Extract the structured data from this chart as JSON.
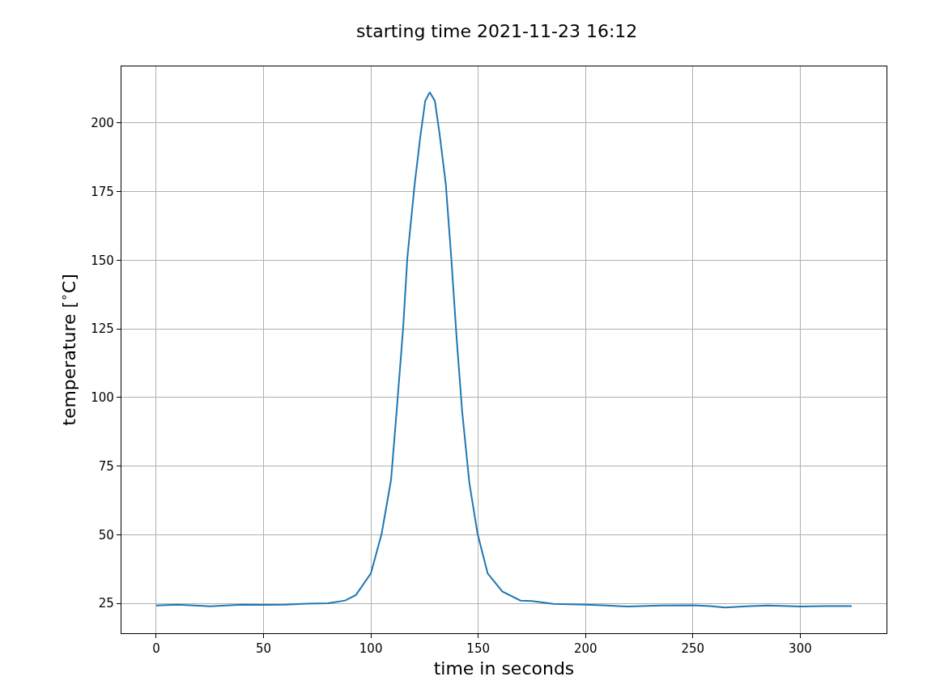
{
  "chart_data": {
    "type": "line",
    "title": "starting time 2021-11-23 16:12",
    "xlabel": "time in seconds",
    "ylabel": "temperature [$^{∘}$C]",
    "series": [
      {
        "color": "#1f77b4",
        "x": [
          0,
          10,
          25,
          40,
          50,
          60,
          70,
          80,
          88,
          93,
          100,
          105,
          109.4,
          112,
          115,
          117,
          120.4,
          123,
          125.3,
          127.4,
          129.8,
          132,
          134.9,
          137.4,
          140,
          142.5,
          145.9,
          149.7,
          154.4,
          161.2,
          169.7,
          175,
          185,
          200,
          210,
          220,
          235,
          250,
          258,
          265,
          275,
          285,
          300,
          312,
          324
        ],
        "values": [
          24.2,
          24.5,
          23.9,
          24.5,
          24.4,
          24.5,
          24.9,
          25.0,
          26.0,
          28.0,
          35.9,
          50.3,
          70,
          95,
          125,
          151,
          177.7,
          194.8,
          208,
          211.2,
          208,
          196,
          177.7,
          151.4,
          121,
          95,
          68.7,
          50.3,
          35.9,
          29.3,
          26.0,
          25.8,
          24.8,
          24.5,
          24.2,
          23.8,
          24.2,
          24.3,
          24.0,
          23.5,
          23.9,
          24.2,
          23.8,
          24.0,
          24.0
        ]
      }
    ],
    "xlim": [
      -16.2,
      340.2
    ],
    "ylim": [
      14.1,
      220.6
    ],
    "xticks": [
      0,
      50,
      100,
      150,
      200,
      250,
      300
    ],
    "yticks": [
      25,
      50,
      75,
      100,
      125,
      150,
      175,
      200
    ],
    "grid": true,
    "marker": "none",
    "line_style": "solid"
  }
}
